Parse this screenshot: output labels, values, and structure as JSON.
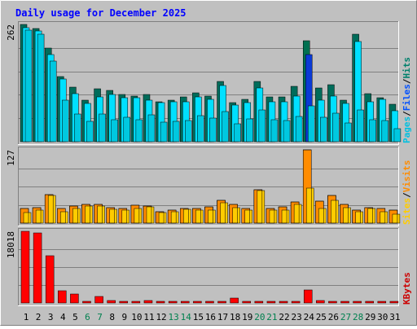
{
  "chart_data": {
    "type": "bar",
    "title": "Daily usage for December 2025",
    "days": [
      "1",
      "2",
      "3",
      "4",
      "5",
      "6",
      "7",
      "8",
      "9",
      "10",
      "11",
      "12",
      "13",
      "14",
      "15",
      "16",
      "17",
      "18",
      "19",
      "20",
      "21",
      "22",
      "23",
      "24",
      "25",
      "26",
      "27",
      "28",
      "29",
      "30",
      "31"
    ],
    "weekend_days": [
      6,
      7,
      13,
      14,
      20,
      21,
      27,
      28
    ],
    "colors": {
      "background": "#c0c0c0",
      "frame": "#ffffff",
      "title": "#0000ff",
      "hits": "#006c5a",
      "files": "#00e0ff",
      "pages": "#00c8e0",
      "visits": "#ff8c00",
      "sites": "#ffcc00",
      "kbytes": "#ff0000",
      "kbytes_label": "#cc0000",
      "weekday_text": "#000000",
      "weekend_text": "#00804f",
      "highlight_bar": "#0a3ad6"
    },
    "panels": [
      {
        "id": "hits-files-pages",
        "max_label": "262",
        "max": 262,
        "legend": [
          {
            "text": "Hits",
            "color": "#00806c"
          },
          {
            "text": "/",
            "color": "#000000"
          },
          {
            "text": "Files",
            "color": "#0050ff"
          },
          {
            "text": "/",
            "color": "#000000"
          },
          {
            "text": "Pages",
            "color": "#00c0e0"
          }
        ],
        "series": [
          {
            "name": "Hits",
            "values": [
              262,
              252,
              210,
              145,
              121,
              92,
              118,
              115,
              105,
              102,
              105,
              90,
              93,
              100,
              110,
              102,
              135,
              87,
              95,
              135,
              100,
              100,
              123,
              225,
              120,
              127,
              92,
              240,
              107,
              98,
              83
            ]
          },
          {
            "name": "Files",
            "values": [
              255,
              247,
              195,
              140,
              108,
              85,
              100,
              105,
              98,
              98,
              92,
              87,
              90,
              90,
              100,
              95,
              125,
              82,
              88,
              120,
              90,
              90,
              102,
              195,
              92,
              102,
              85,
              223,
              90,
              94,
              70
            ]
          },
          {
            "name": "Pages",
            "values": [
              250,
              241,
              180,
              92,
              62,
              45,
              62,
              50,
              55,
              50,
              60,
              44,
              45,
              47,
              58,
              52,
              68,
              40,
              51,
              71,
              50,
              47,
              57,
              80,
              55,
              64,
              42,
              71,
              49,
              48,
              30
            ]
          }
        ]
      },
      {
        "id": "visits-sites",
        "max_label": "127",
        "max": 127,
        "legend": [
          {
            "text": "Visits",
            "color": "#ff8c00"
          },
          {
            "text": "/",
            "color": "#000000"
          },
          {
            "text": "Sites",
            "color": "#ffcc00"
          }
        ],
        "series": [
          {
            "name": "Visits",
            "values": [
              25,
              27,
              50,
              25,
              29,
              33,
              33,
              27,
              26,
              31,
              29,
              20,
              22,
              25,
              25,
              28,
              40,
              32,
              25,
              58,
              26,
              28,
              37,
              127,
              38,
              48,
              32,
              23,
              27,
              25,
              22
            ]
          },
          {
            "name": "Sites",
            "values": [
              19,
              22,
              48,
              20,
              25,
              30,
              30,
              24,
              22,
              25,
              28,
              19,
              20,
              24,
              22,
              22,
              35,
              27,
              22,
              56,
              23,
              23,
              32,
              60,
              25,
              40,
              27,
              20,
              25,
              20,
              15
            ]
          }
        ]
      },
      {
        "id": "kbytes",
        "max_label": "18018",
        "max": 18018,
        "legend": [
          {
            "text": "KBytes",
            "color": "#cc0000"
          }
        ],
        "series": [
          {
            "name": "KBytes",
            "values": [
              18018,
              17600,
              11800,
              3000,
              2300,
              250,
              1700,
              700,
              250,
              250,
              600,
              400,
              350,
              500,
              450,
              500,
              350,
              1200,
              250,
              300,
              280,
              250,
              250,
              3300,
              700,
              500,
              400,
              450,
              250,
              250,
              250
            ]
          }
        ]
      }
    ]
  }
}
